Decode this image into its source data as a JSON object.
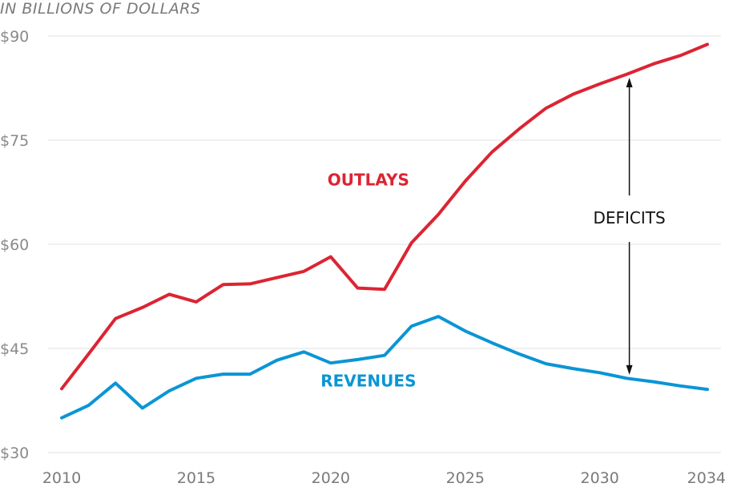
{
  "chart_data": {
    "type": "line",
    "subtitle": "IN BILLIONS OF DOLLARS",
    "xlabel": "",
    "ylabel": "",
    "xlim": [
      2010,
      2034
    ],
    "ylim": [
      30,
      90
    ],
    "grid": true,
    "yticks": [
      {
        "value": 90,
        "label": "$90"
      },
      {
        "value": 75,
        "label": "$75"
      },
      {
        "value": 60,
        "label": "$60"
      },
      {
        "value": 45,
        "label": "$45"
      },
      {
        "value": 30,
        "label": "$30"
      }
    ],
    "xticks": [
      {
        "value": 2010,
        "label": "2010"
      },
      {
        "value": 2015,
        "label": "2015"
      },
      {
        "value": 2020,
        "label": "2020"
      },
      {
        "value": 2025,
        "label": "2025"
      },
      {
        "value": 2030,
        "label": "2030"
      },
      {
        "value": 2034,
        "label": "2034"
      }
    ],
    "x": [
      2010,
      2011,
      2012,
      2013,
      2014,
      2015,
      2016,
      2017,
      2018,
      2019,
      2020,
      2021,
      2022,
      2023,
      2024,
      2025,
      2026,
      2027,
      2028,
      2029,
      2030,
      2031,
      2032,
      2033,
      2034
    ],
    "series": [
      {
        "name": "OUTLAYS",
        "color": "#dc2433",
        "label_position": {
          "x": 2021.4,
          "y": 68.5
        },
        "values": [
          39.2,
          44.2,
          49.3,
          50.9,
          52.8,
          51.7,
          54.2,
          54.3,
          55.2,
          56.1,
          58.2,
          53.7,
          53.5,
          60.2,
          64.3,
          69.1,
          73.3,
          76.6,
          79.6,
          81.6,
          83.1,
          84.5,
          86.0,
          87.2,
          88.8
        ]
      },
      {
        "name": "REVENUES",
        "color": "#0a95d5",
        "label_position": {
          "x": 2021.4,
          "y": 39.5
        },
        "values": [
          35.0,
          36.8,
          40.0,
          36.4,
          38.9,
          40.7,
          41.3,
          41.3,
          43.3,
          44.5,
          42.9,
          43.4,
          44.0,
          48.2,
          49.6,
          47.5,
          45.8,
          44.2,
          42.8,
          42.1,
          41.5,
          40.7,
          40.2,
          39.6,
          39.1
        ]
      }
    ],
    "annotations": [
      {
        "text": "DEFICITS",
        "x": 2031.1,
        "y": 63.8,
        "arrow_from": 84.0,
        "arrow_to": 41.2,
        "color": "#111111"
      }
    ]
  }
}
